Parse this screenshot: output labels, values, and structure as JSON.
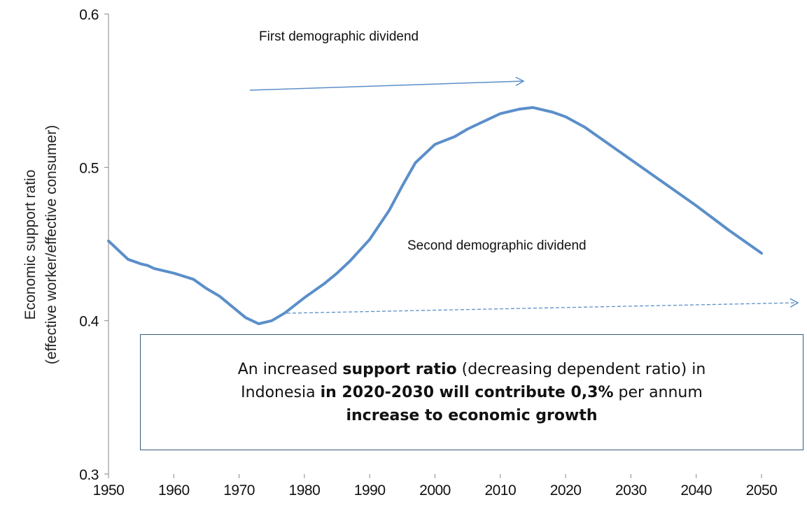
{
  "chart_data": {
    "type": "line",
    "y_label_lines": [
      "Economic support ratio",
      "(effective worker/effective consumer)"
    ],
    "annotations": [
      "First demographic dividend",
      "Second demographic dividend"
    ],
    "callout_lines": [
      [
        {
          "text": "An increased ",
          "bold": false
        },
        {
          "text": "support ratio",
          "bold": true
        },
        {
          "text": " (decreasing dependent ratio) in",
          "bold": false
        }
      ],
      [
        {
          "text": "Indonesia ",
          "bold": false
        },
        {
          "text": "in 2020-2030 will contribute 0,3%",
          "bold": true
        },
        {
          "text": " per annum",
          "bold": false
        }
      ],
      [
        {
          "text": "increase to economic growth",
          "bold": true
        }
      ]
    ],
    "x": [
      1950,
      1953,
      1955,
      1956,
      1957,
      1960,
      1963,
      1965,
      1967,
      1969,
      1971,
      1973,
      1975,
      1977,
      1980,
      1983,
      1985,
      1987,
      1990,
      1993,
      1995,
      1997,
      2000,
      2003,
      2005,
      2008,
      2010,
      2013,
      2015,
      2018,
      2020,
      2023,
      2025,
      2030,
      2035,
      2040,
      2045,
      2050
    ],
    "series": [
      {
        "color": "#5b8fc9",
        "values": [
          0.452,
          0.44,
          0.437,
          0.436,
          0.434,
          0.431,
          0.427,
          0.421,
          0.416,
          0.409,
          0.402,
          0.398,
          0.4,
          0.405,
          0.415,
          0.424,
          0.431,
          0.439,
          0.453,
          0.472,
          0.488,
          0.503,
          0.515,
          0.52,
          0.525,
          0.531,
          0.535,
          0.538,
          0.539,
          0.536,
          0.533,
          0.526,
          0.52,
          0.505,
          0.49,
          0.475,
          0.459,
          0.444
        ]
      }
    ],
    "xlim": [
      1950,
      2050
    ],
    "xticks": [
      1950,
      1960,
      1970,
      1980,
      1990,
      2000,
      2010,
      2020,
      2030,
      2040,
      2050
    ],
    "ylim": [
      0.3,
      0.6
    ],
    "yticks": [
      0.3,
      0.4,
      0.5,
      0.6
    ]
  }
}
